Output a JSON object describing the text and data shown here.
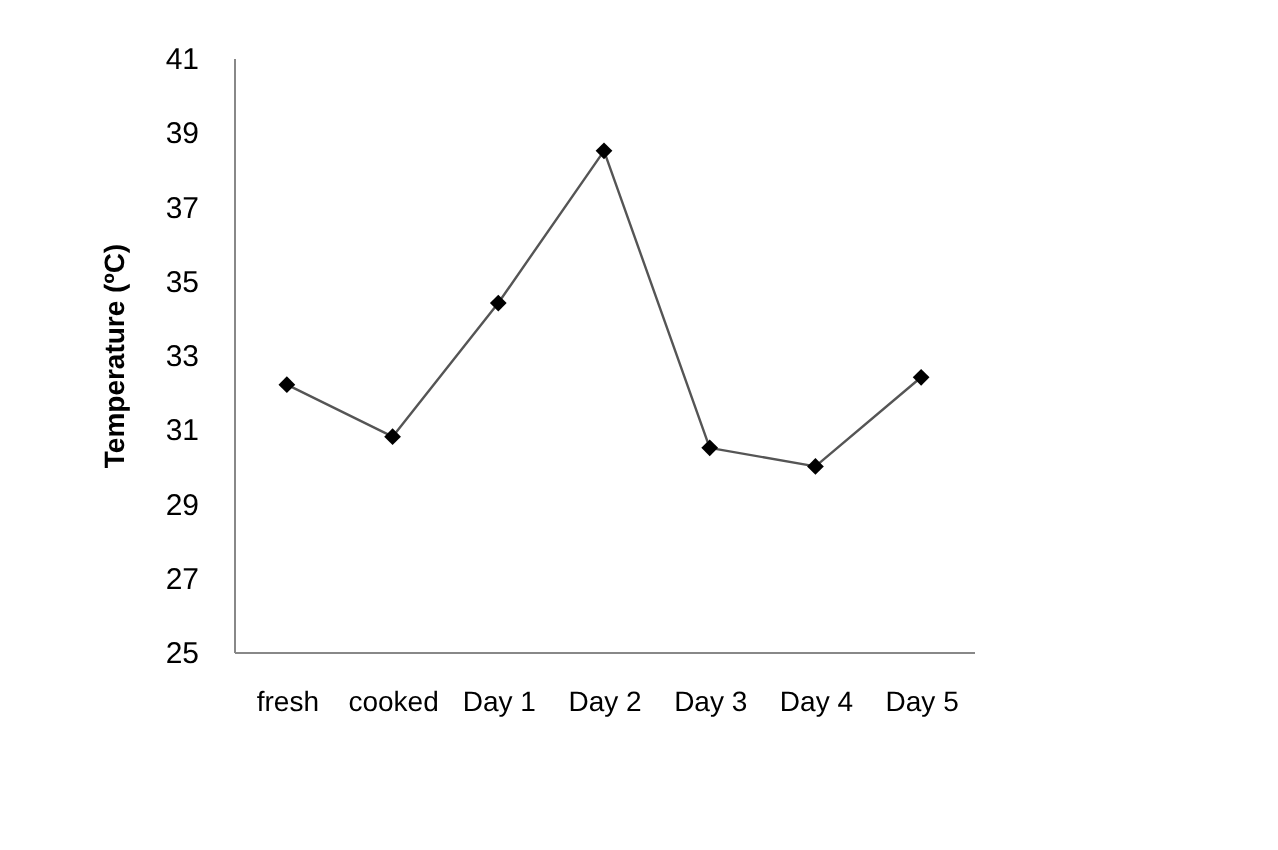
{
  "chart_data": {
    "type": "line",
    "ylabel": "Temperature (ºC)",
    "categories": [
      "fresh",
      "cooked",
      "Day 1",
      "Day 2",
      "Day 3",
      "Day 4",
      "Day 5"
    ],
    "series": [
      {
        "color": "#000000",
        "values": [
          32.2,
          30.8,
          34.4,
          38.5,
          30.5,
          30.0,
          32.4
        ]
      }
    ],
    "ylim": [
      25,
      41
    ],
    "yticks": [
      25,
      27,
      29,
      31,
      33,
      35,
      37,
      39,
      41
    ],
    "grid": false,
    "marker": "diamond",
    "line_style": "solid"
  }
}
